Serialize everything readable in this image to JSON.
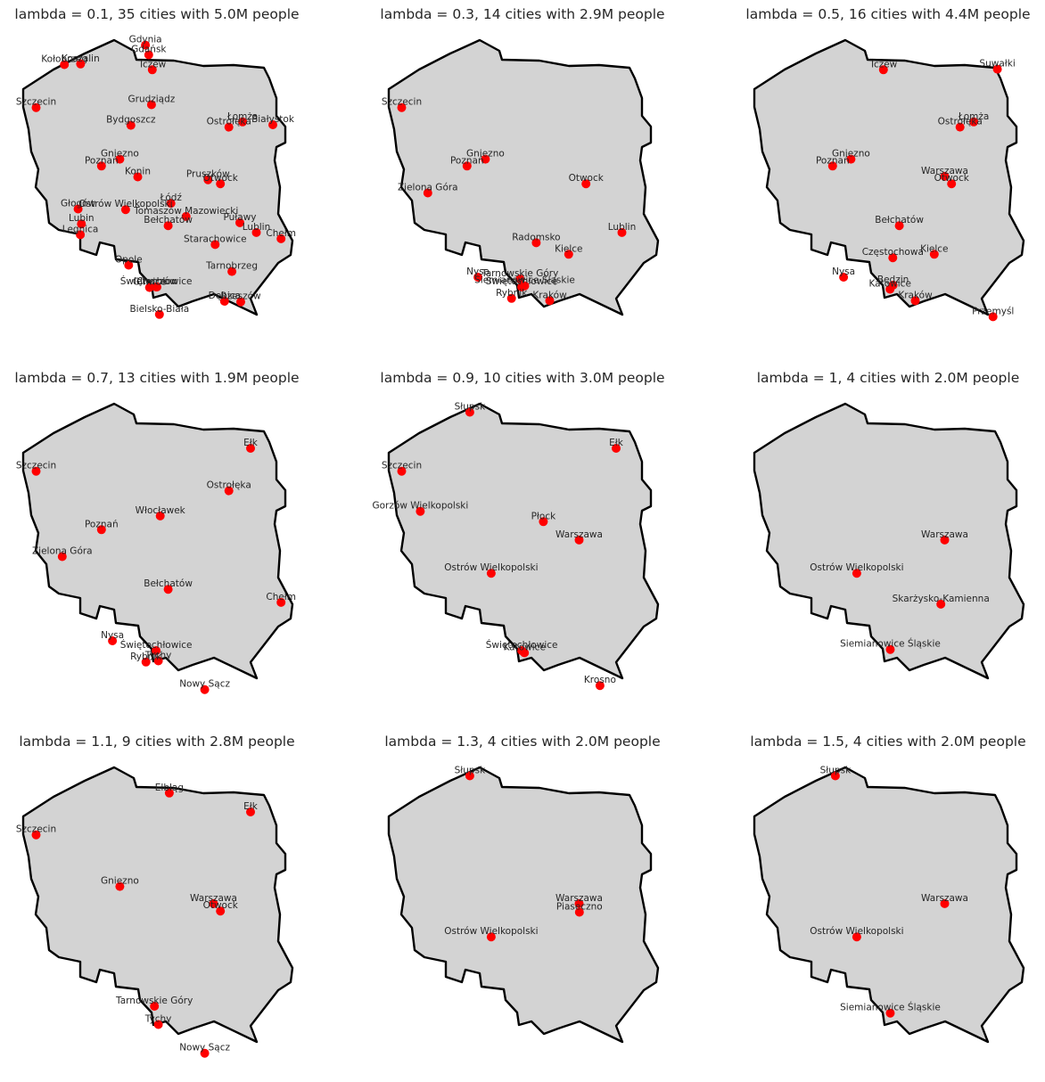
{
  "colors": {
    "outline_fill": "#d3d3d3",
    "outline_stroke": "#000000",
    "city": "#ff0000",
    "text": "#262626"
  },
  "panels": [
    {
      "title": "lambda = 0.1, 35 cities with 5.0M people",
      "cities": [
        {
          "name": "Gdynia",
          "lon": 18.53,
          "lat": 54.52
        },
        {
          "name": "Gdańsk",
          "lon": 18.65,
          "lat": 54.35
        },
        {
          "name": "Kołobrzeg",
          "lon": 15.58,
          "lat": 54.18
        },
        {
          "name": "Koszalin",
          "lon": 16.17,
          "lat": 54.19
        },
        {
          "name": "Tczew",
          "lon": 18.78,
          "lat": 54.09
        },
        {
          "name": "Szczecin",
          "lon": 14.55,
          "lat": 53.43
        },
        {
          "name": "Grudziądz",
          "lon": 18.75,
          "lat": 53.48
        },
        {
          "name": "Bydgoszcz",
          "lon": 18.0,
          "lat": 53.12
        },
        {
          "name": "Łomża",
          "lon": 22.07,
          "lat": 53.18
        },
        {
          "name": "Ostrołęka",
          "lon": 21.57,
          "lat": 53.09
        },
        {
          "name": "Białystok",
          "lon": 23.17,
          "lat": 53.13
        },
        {
          "name": "Gniezno",
          "lon": 17.6,
          "lat": 52.53
        },
        {
          "name": "Poznań",
          "lon": 16.93,
          "lat": 52.41
        },
        {
          "name": "Konin",
          "lon": 18.25,
          "lat": 52.22
        },
        {
          "name": "Pruszków",
          "lon": 20.81,
          "lat": 52.17
        },
        {
          "name": "Otwock",
          "lon": 21.26,
          "lat": 52.1
        },
        {
          "name": "Łódź",
          "lon": 19.46,
          "lat": 51.76
        },
        {
          "name": "Głogów",
          "lon": 16.08,
          "lat": 51.66
        },
        {
          "name": "Ostrów Wielkopolski",
          "lon": 17.81,
          "lat": 51.65
        },
        {
          "name": "Tomaszów Mazowiecki",
          "lon": 20.01,
          "lat": 51.53
        },
        {
          "name": "Lubin",
          "lon": 16.2,
          "lat": 51.4
        },
        {
          "name": "Bełchatów",
          "lon": 19.36,
          "lat": 51.37
        },
        {
          "name": "Puławy",
          "lon": 21.97,
          "lat": 51.42
        },
        {
          "name": "Legnica",
          "lon": 16.16,
          "lat": 51.21
        },
        {
          "name": "Lublin",
          "lon": 22.57,
          "lat": 51.25
        },
        {
          "name": "Chełm",
          "lon": 23.47,
          "lat": 51.14
        },
        {
          "name": "Starachowice",
          "lon": 21.07,
          "lat": 51.04
        },
        {
          "name": "Opole",
          "lon": 17.92,
          "lat": 50.68
        },
        {
          "name": "Tarnobrzeg",
          "lon": 21.68,
          "lat": 50.57
        },
        {
          "name": "Świętochłowice",
          "lon": 18.92,
          "lat": 50.3
        },
        {
          "name": "Chorzów",
          "lon": 18.95,
          "lat": 50.3
        },
        {
          "name": "Gliwice",
          "lon": 18.68,
          "lat": 50.29
        },
        {
          "name": "Dębica",
          "lon": 21.41,
          "lat": 50.05
        },
        {
          "name": "Rzeszów",
          "lon": 22.0,
          "lat": 50.04
        },
        {
          "name": "Bielsko-Biała",
          "lon": 19.04,
          "lat": 49.82
        }
      ]
    },
    {
      "title": "lambda = 0.3, 14 cities with 2.9M people",
      "cities": [
        {
          "name": "Szczecin",
          "lon": 14.55,
          "lat": 53.43
        },
        {
          "name": "Gniezno",
          "lon": 17.6,
          "lat": 52.53
        },
        {
          "name": "Poznań",
          "lon": 16.93,
          "lat": 52.41
        },
        {
          "name": "Otwock",
          "lon": 21.26,
          "lat": 52.1
        },
        {
          "name": "Zielona Góra",
          "lon": 15.5,
          "lat": 51.94
        },
        {
          "name": "Lublin",
          "lon": 22.57,
          "lat": 51.25
        },
        {
          "name": "Radomsko",
          "lon": 19.45,
          "lat": 51.07
        },
        {
          "name": "Kielce",
          "lon": 20.63,
          "lat": 50.87
        },
        {
          "name": "Nysa",
          "lon": 17.33,
          "lat": 50.47
        },
        {
          "name": "Tarnowskie Góry",
          "lon": 18.86,
          "lat": 50.44
        },
        {
          "name": "Świętochłowice",
          "lon": 18.92,
          "lat": 50.3
        },
        {
          "name": "Siemianowice Śląskie",
          "lon": 19.03,
          "lat": 50.32
        },
        {
          "name": "Rybnik",
          "lon": 18.55,
          "lat": 50.1
        },
        {
          "name": "Kraków",
          "lon": 19.94,
          "lat": 50.06
        }
      ]
    },
    {
      "title": "lambda = 0.5, 16 cities with 4.4M people",
      "cities": [
        {
          "name": "Tczew",
          "lon": 18.78,
          "lat": 54.09
        },
        {
          "name": "Suwałki",
          "lon": 22.93,
          "lat": 54.1
        },
        {
          "name": "Łomża",
          "lon": 22.07,
          "lat": 53.18
        },
        {
          "name": "Ostrołęka",
          "lon": 21.57,
          "lat": 53.09
        },
        {
          "name": "Gniezno",
          "lon": 17.6,
          "lat": 52.53
        },
        {
          "name": "Poznań",
          "lon": 16.93,
          "lat": 52.41
        },
        {
          "name": "Warszawa",
          "lon": 21.01,
          "lat": 52.23
        },
        {
          "name": "Otwock",
          "lon": 21.26,
          "lat": 52.1
        },
        {
          "name": "Bełchatów",
          "lon": 19.36,
          "lat": 51.37
        },
        {
          "name": "Częstochowa",
          "lon": 19.12,
          "lat": 50.81
        },
        {
          "name": "Kielce",
          "lon": 20.63,
          "lat": 50.87
        },
        {
          "name": "Nysa",
          "lon": 17.33,
          "lat": 50.47
        },
        {
          "name": "Będzin",
          "lon": 19.13,
          "lat": 50.33
        },
        {
          "name": "Katowice",
          "lon": 19.02,
          "lat": 50.26
        },
        {
          "name": "Kraków",
          "lon": 19.94,
          "lat": 50.06
        },
        {
          "name": "Przemyśl",
          "lon": 22.77,
          "lat": 49.78
        }
      ]
    },
    {
      "title": "lambda = 0.7, 13 cities with 1.9M people",
      "cities": [
        {
          "name": "Szczecin",
          "lon": 14.55,
          "lat": 53.43
        },
        {
          "name": "Ełk",
          "lon": 22.36,
          "lat": 53.83
        },
        {
          "name": "Ostrołęka",
          "lon": 21.57,
          "lat": 53.09
        },
        {
          "name": "Włocławek",
          "lon": 19.07,
          "lat": 52.65
        },
        {
          "name": "Poznań",
          "lon": 16.93,
          "lat": 52.41
        },
        {
          "name": "Zielona Góra",
          "lon": 15.5,
          "lat": 51.94
        },
        {
          "name": "Bełchatów",
          "lon": 19.36,
          "lat": 51.37
        },
        {
          "name": "Chełm",
          "lon": 23.47,
          "lat": 51.14
        },
        {
          "name": "Nysa",
          "lon": 17.33,
          "lat": 50.47
        },
        {
          "name": "Świętochłowice",
          "lon": 18.92,
          "lat": 50.3
        },
        {
          "name": "Tychy",
          "lon": 19.0,
          "lat": 50.12
        },
        {
          "name": "Rybnik",
          "lon": 18.55,
          "lat": 50.1
        },
        {
          "name": "Nowy Sącz",
          "lon": 20.69,
          "lat": 49.62
        }
      ]
    },
    {
      "title": "lambda = 0.9, 10 cities with 3.0M people",
      "cities": [
        {
          "name": "Słupsk",
          "lon": 17.03,
          "lat": 54.46
        },
        {
          "name": "Szczecin",
          "lon": 14.55,
          "lat": 53.43
        },
        {
          "name": "Ełk",
          "lon": 22.36,
          "lat": 53.83
        },
        {
          "name": "Gorzów Wielkopolski",
          "lon": 15.23,
          "lat": 52.73
        },
        {
          "name": "Płock",
          "lon": 19.71,
          "lat": 52.55
        },
        {
          "name": "Warszawa",
          "lon": 21.01,
          "lat": 52.23
        },
        {
          "name": "Ostrów Wielkopolski",
          "lon": 17.81,
          "lat": 51.65
        },
        {
          "name": "Świętochłowice",
          "lon": 18.92,
          "lat": 50.3
        },
        {
          "name": "Katowice",
          "lon": 19.02,
          "lat": 50.26
        },
        {
          "name": "Krosno",
          "lon": 21.77,
          "lat": 49.69
        }
      ]
    },
    {
      "title": "lambda = 1, 4 cities with 2.0M people",
      "cities": [
        {
          "name": "Warszawa",
          "lon": 21.01,
          "lat": 52.23
        },
        {
          "name": "Ostrów Wielkopolski",
          "lon": 17.81,
          "lat": 51.65
        },
        {
          "name": "Skarżysko-Kamienna",
          "lon": 20.87,
          "lat": 51.11
        },
        {
          "name": "Siemianowice Śląskie",
          "lon": 19.03,
          "lat": 50.32
        }
      ]
    },
    {
      "title": "lambda = 1.1, 9 cities with 2.8M people",
      "cities": [
        {
          "name": "Elbląg",
          "lon": 19.4,
          "lat": 54.16
        },
        {
          "name": "Szczecin",
          "lon": 14.55,
          "lat": 53.43
        },
        {
          "name": "Ełk",
          "lon": 22.36,
          "lat": 53.83
        },
        {
          "name": "Gniezno",
          "lon": 17.6,
          "lat": 52.53
        },
        {
          "name": "Warszawa",
          "lon": 21.01,
          "lat": 52.23
        },
        {
          "name": "Otwock",
          "lon": 21.26,
          "lat": 52.1
        },
        {
          "name": "Tarnowskie Góry",
          "lon": 18.86,
          "lat": 50.44
        },
        {
          "name": "Tychy",
          "lon": 19.0,
          "lat": 50.12
        },
        {
          "name": "Nowy Sącz",
          "lon": 20.69,
          "lat": 49.62
        }
      ]
    },
    {
      "title": "lambda = 1.3, 4 cities with 2.0M people",
      "cities": [
        {
          "name": "Słupsk",
          "lon": 17.03,
          "lat": 54.46
        },
        {
          "name": "Warszawa",
          "lon": 21.01,
          "lat": 52.23
        },
        {
          "name": "Piaseczno",
          "lon": 21.02,
          "lat": 52.08
        },
        {
          "name": "Ostrów Wielkopolski",
          "lon": 17.81,
          "lat": 51.65
        }
      ]
    },
    {
      "title": "lambda = 1.5, 4 cities with 2.0M people",
      "cities": [
        {
          "name": "Słupsk",
          "lon": 17.03,
          "lat": 54.46
        },
        {
          "name": "Warszawa",
          "lon": 21.01,
          "lat": 52.23
        },
        {
          "name": "Ostrów Wielkopolski",
          "lon": 17.81,
          "lat": 51.65
        },
        {
          "name": "Siemianowice Śląskie",
          "lon": 19.03,
          "lat": 50.32
        }
      ]
    }
  ]
}
